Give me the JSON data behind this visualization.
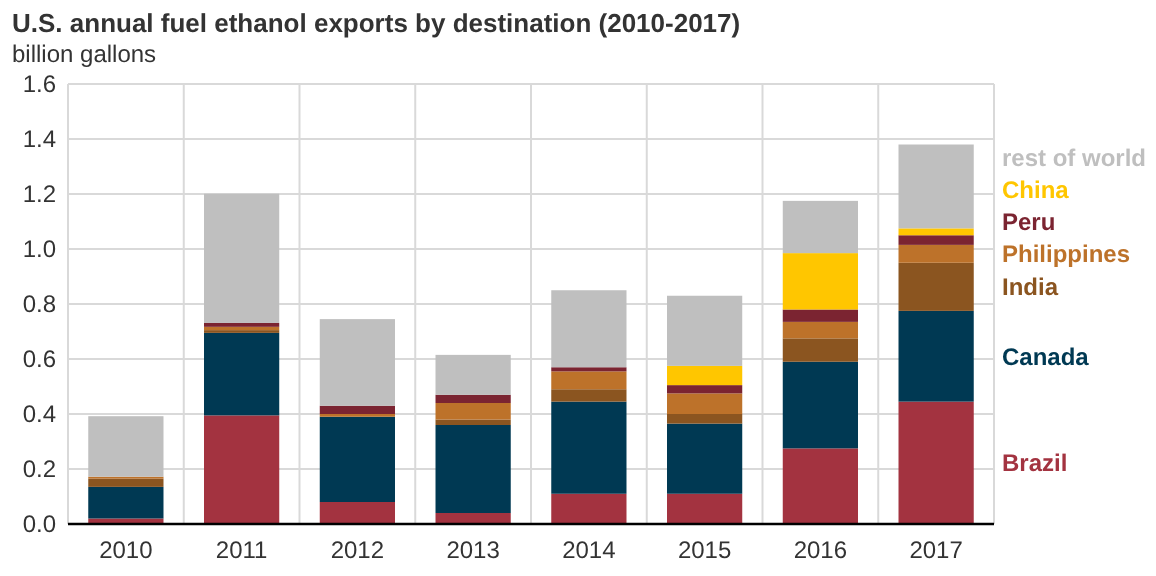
{
  "chart_data": {
    "type": "bar",
    "title": "U.S. annual fuel ethanol exports by destination (2010-2017)",
    "subtitle": "billion gallons",
    "stacked": true,
    "grid": true,
    "legend": "right",
    "categories": [
      "2010",
      "2011",
      "2012",
      "2013",
      "2014",
      "2015",
      "2016",
      "2017"
    ],
    "ylim": [
      0,
      1.6
    ],
    "yticks": [
      {
        "value": 0,
        "label": "0.0"
      },
      {
        "value": 0.2,
        "label": "0.2"
      },
      {
        "value": 0.4,
        "label": "0.4"
      },
      {
        "value": 0.6,
        "label": "0.6"
      },
      {
        "value": 0.8,
        "label": "0.8"
      },
      {
        "value": 1.0,
        "label": "1.0"
      },
      {
        "value": 1.2,
        "label": "1.2"
      },
      {
        "value": 1.4,
        "label": "1.4"
      },
      {
        "value": 1.6,
        "label": "1.6"
      }
    ],
    "series": [
      {
        "name": "Brazil",
        "color": "#a33340",
        "values": [
          0.02,
          0.395,
          0.08,
          0.04,
          0.11,
          0.11,
          0.275,
          0.445
        ]
      },
      {
        "name": "Canada",
        "color": "#003953",
        "values": [
          0.115,
          0.3,
          0.31,
          0.32,
          0.335,
          0.255,
          0.315,
          0.33
        ]
      },
      {
        "name": "India",
        "color": "#8b5520",
        "values": [
          0.03,
          0.01,
          0,
          0.02,
          0.045,
          0.035,
          0.085,
          0.175
        ]
      },
      {
        "name": "Philippines",
        "color": "#bd722a",
        "values": [
          0.007,
          0.012,
          0.01,
          0.06,
          0.065,
          0.075,
          0.06,
          0.065
        ]
      },
      {
        "name": "Peru",
        "color": "#7b2431",
        "values": [
          0,
          0.014,
          0.03,
          0.03,
          0.015,
          0.03,
          0.045,
          0.035
        ]
      },
      {
        "name": "China",
        "color": "#ffc600",
        "values": [
          0,
          0,
          0,
          0,
          0,
          0.07,
          0.205,
          0.025
        ]
      },
      {
        "name": "rest of world",
        "color": "#bfbfbf",
        "values": [
          0.22,
          0.47,
          0.315,
          0.145,
          0.28,
          0.255,
          0.19,
          0.305
        ]
      }
    ]
  }
}
